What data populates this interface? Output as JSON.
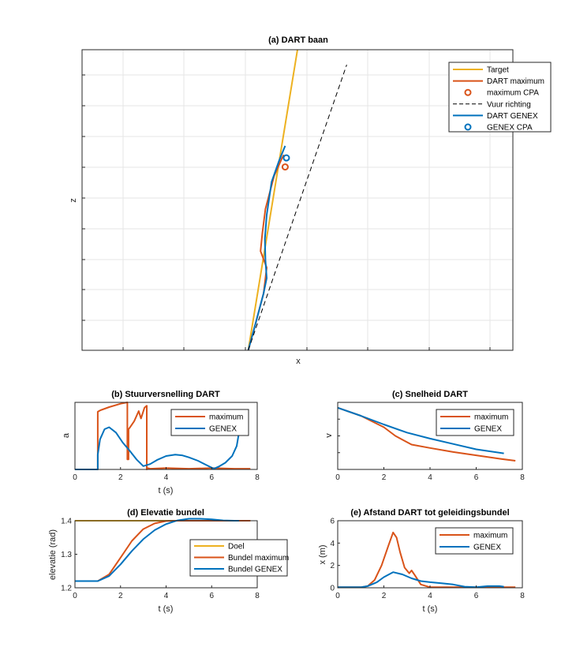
{
  "colors": {
    "target": "#EDB120",
    "maximum": "#D95319",
    "genex": "#0072BD",
    "fire": "#000000",
    "grid": "#e6e6e6",
    "axis": "#262626"
  },
  "chart_data": [
    {
      "id": "a",
      "type": "line",
      "title": "(a) DART baan",
      "xlabel": "x",
      "ylabel": "z",
      "xlim": [
        0,
        7
      ],
      "ylim": [
        0,
        10
      ],
      "xticks_shown": false,
      "yticks_shown": false,
      "grid": true,
      "legend_position": "top-right",
      "legend": [
        "Target",
        "DART maximum",
        "maximum CPA",
        "Vuur richting",
        "DART GENEX",
        "GENEX CPA"
      ],
      "series": [
        {
          "name": "Target",
          "x": [
            2.7,
            3.5
          ],
          "y": [
            0,
            10
          ]
        },
        {
          "name": "DART maximum",
          "x": [
            2.7,
            2.82,
            2.95,
            3.0,
            2.9,
            2.93,
            2.98,
            3.12,
            3.25,
            3.28
          ],
          "y": [
            0,
            0.9,
            1.9,
            2.75,
            3.3,
            3.9,
            4.7,
            5.8,
            6.4,
            6.5
          ]
        },
        {
          "name": "DART GENEX",
          "x": [
            2.7,
            2.82,
            2.95,
            3.0,
            2.98,
            2.97,
            3.0,
            3.08,
            3.2,
            3.3
          ],
          "y": [
            0,
            0.9,
            1.9,
            2.4,
            3.0,
            3.7,
            4.5,
            5.6,
            6.3,
            6.8
          ]
        },
        {
          "name": "Vuur richting",
          "x": [
            2.7,
            4.3
          ],
          "y": [
            0,
            9.5
          ]
        }
      ],
      "markers": [
        {
          "name": "maximum CPA",
          "x": [
            3.3
          ],
          "y": [
            6.1
          ]
        },
        {
          "name": "GENEX CPA",
          "x": [
            3.32
          ],
          "y": [
            6.4
          ]
        }
      ]
    },
    {
      "id": "b",
      "type": "line",
      "title": "(b) Stuurversnelling DART",
      "xlabel": "t (s)",
      "ylabel": "a",
      "xlim": [
        0,
        8
      ],
      "ylim": [
        0,
        1
      ],
      "xticks": [
        0,
        2,
        4,
        6,
        8
      ],
      "yticks_shown": false,
      "legend_position": "top-right",
      "legend": [
        "maximum",
        "GENEX"
      ],
      "series": [
        {
          "name": "maximum",
          "x": [
            0,
            1.0,
            1.0,
            1.1,
            1.5,
            2.0,
            2.3,
            2.3,
            2.35,
            2.35,
            2.4,
            2.6,
            2.8,
            2.9,
            3.05,
            3.15,
            3.15,
            3.2,
            3.3,
            4.0,
            5.0,
            6.0,
            7.0,
            7.7
          ],
          "y": [
            0,
            0,
            0.86,
            0.88,
            0.93,
            0.98,
            1.0,
            0.15,
            0.15,
            0.6,
            0.62,
            0.72,
            0.87,
            0.76,
            0.92,
            0.95,
            0.0,
            0.02,
            0.01,
            0.02,
            0.01,
            0.02,
            0.01,
            0.01
          ]
        },
        {
          "name": "GENEX",
          "x": [
            0,
            1.0,
            1.0,
            1.1,
            1.3,
            1.5,
            1.8,
            2.1,
            2.4,
            2.7,
            3.0,
            3.3,
            3.6,
            4.0,
            4.4,
            4.7,
            5.0,
            5.4,
            5.8,
            6.1,
            6.3,
            6.6,
            6.9,
            7.1,
            7.2
          ],
          "y": [
            0,
            0,
            0.22,
            0.45,
            0.6,
            0.63,
            0.55,
            0.4,
            0.28,
            0.15,
            0.05,
            0.08,
            0.14,
            0.2,
            0.22,
            0.21,
            0.18,
            0.13,
            0.06,
            0.01,
            0.04,
            0.1,
            0.2,
            0.35,
            0.55
          ]
        }
      ]
    },
    {
      "id": "c",
      "type": "line",
      "title": "(c) Snelheid DART",
      "xlabel": "",
      "ylabel": "v",
      "xlim": [
        0,
        8
      ],
      "ylim": [
        0,
        1
      ],
      "xticks": [
        0,
        2,
        4,
        6,
        8
      ],
      "yticks_shown": false,
      "legend_position": "top-right",
      "legend": [
        "maximum",
        "GENEX"
      ],
      "series": [
        {
          "name": "maximum",
          "x": [
            0,
            1,
            2,
            2.5,
            3.2,
            4,
            5,
            6,
            7,
            7.7
          ],
          "y": [
            0.92,
            0.8,
            0.63,
            0.5,
            0.37,
            0.32,
            0.26,
            0.21,
            0.16,
            0.13
          ]
        },
        {
          "name": "GENEX",
          "x": [
            0,
            1,
            2,
            3,
            4,
            5,
            6,
            7.2
          ],
          "y": [
            0.92,
            0.8,
            0.67,
            0.55,
            0.46,
            0.38,
            0.3,
            0.24
          ]
        }
      ]
    },
    {
      "id": "d",
      "type": "line",
      "title": "(d) Elevatie bundel",
      "xlabel": "t (s)",
      "ylabel": "elevatie (rad)",
      "xlim": [
        0,
        8
      ],
      "ylim": [
        1.2,
        1.4
      ],
      "xticks": [
        0,
        2,
        4,
        6,
        8
      ],
      "yticks": [
        1.2,
        1.3,
        1.4
      ],
      "legend_position": "bottom-right",
      "legend": [
        "Doel",
        "Bundel maximum",
        "Bundel GENEX"
      ],
      "series": [
        {
          "name": "Doel",
          "x": [
            0,
            7.7
          ],
          "y": [
            1.4,
            1.4
          ]
        },
        {
          "name": "Bundel maximum",
          "x": [
            0,
            1,
            1.5,
            2,
            2.5,
            3,
            3.5,
            4,
            4.5,
            5,
            5.5,
            6,
            6.5,
            7,
            7.7
          ],
          "y": [
            1.22,
            1.22,
            1.24,
            1.29,
            1.34,
            1.375,
            1.392,
            1.399,
            1.4,
            1.4,
            1.4,
            1.4,
            1.4,
            1.4,
            1.4
          ]
        },
        {
          "name": "Bundel GENEX",
          "x": [
            0,
            1,
            1.5,
            2,
            2.5,
            3,
            3.5,
            4,
            4.5,
            5,
            5.5,
            6,
            6.5,
            7,
            7.2
          ],
          "y": [
            1.22,
            1.22,
            1.235,
            1.27,
            1.31,
            1.345,
            1.372,
            1.39,
            1.401,
            1.406,
            1.406,
            1.404,
            1.401,
            1.4,
            1.4
          ]
        }
      ]
    },
    {
      "id": "e",
      "type": "line",
      "title": "(e) Afstand DART tot geleidingsbundel",
      "xlabel": "t (s)",
      "ylabel": "x (m)",
      "xlim": [
        0,
        8
      ],
      "ylim": [
        0,
        6
      ],
      "xticks": [
        0,
        2,
        4,
        6,
        8
      ],
      "yticks": [
        0,
        2,
        4,
        6
      ],
      "legend_position": "top-right",
      "legend": [
        "maximum",
        "GENEX"
      ],
      "series": [
        {
          "name": "maximum",
          "x": [
            0,
            1,
            1.3,
            1.6,
            1.9,
            2.2,
            2.4,
            2.55,
            2.7,
            2.9,
            3.1,
            3.2,
            3.35,
            3.6,
            4,
            5,
            6,
            7,
            7.7
          ],
          "y": [
            0.05,
            0.05,
            0.15,
            0.7,
            2.0,
            3.8,
            4.95,
            4.5,
            3.2,
            1.8,
            1.3,
            1.55,
            1.1,
            0.3,
            0.05,
            0.05,
            0.05,
            0.05,
            0.05
          ]
        },
        {
          "name": "GENEX",
          "x": [
            0,
            1,
            1.3,
            1.7,
            2.0,
            2.4,
            2.8,
            3.2,
            3.6,
            4,
            4.5,
            5,
            5.5,
            6,
            6.5,
            7,
            7.2
          ],
          "y": [
            0.05,
            0.05,
            0.15,
            0.5,
            0.95,
            1.4,
            1.2,
            0.85,
            0.6,
            0.5,
            0.4,
            0.3,
            0.1,
            0.05,
            0.15,
            0.15,
            0.1
          ]
        }
      ]
    }
  ]
}
